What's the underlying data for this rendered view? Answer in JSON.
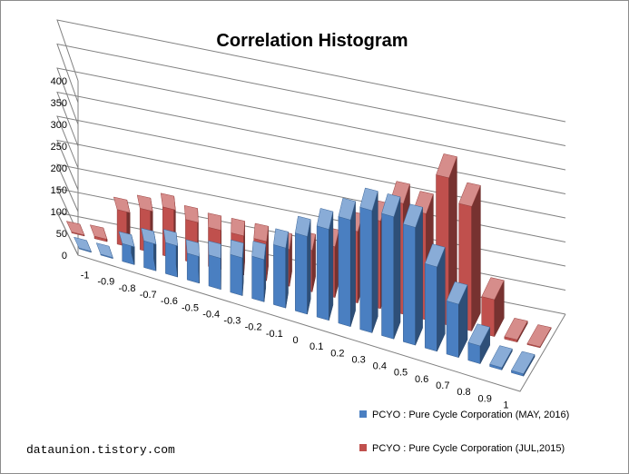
{
  "chart_data": {
    "type": "bar",
    "title": "Correlation Histogram",
    "categories": [
      "-1",
      "-0.9",
      "-0.8",
      "-0.7",
      "-0.6",
      "-0.5",
      "-0.4",
      "-0.3",
      "-0.2",
      "-0.1",
      "0",
      "0.1",
      "0.2",
      "0.3",
      "0.4",
      "0.5",
      "0.6",
      "0.7",
      "0.8",
      "0.9",
      "1"
    ],
    "series": [
      {
        "name": "PCYO : Pure Cycle Corporation (MAY, 2016)",
        "color": "#4a7fc1",
        "values": [
          0,
          0,
          40,
          60,
          70,
          60,
          70,
          85,
          95,
          135,
          175,
          205,
          240,
          275,
          275,
          265,
          190,
          120,
          40,
          5,
          5
        ]
      },
      {
        "name": "PCYO : Pure Cycle Corporation (JUL,2015)",
        "color": "#c0504d",
        "values": [
          0,
          5,
          75,
          90,
          105,
          90,
          85,
          85,
          85,
          80,
          90,
          110,
          155,
          190,
          240,
          230,
          320,
          270,
          80,
          5,
          0
        ]
      }
    ],
    "ylim": [
      0,
      400
    ],
    "yticks": [
      "0",
      "50",
      "100",
      "150",
      "200",
      "250",
      "300",
      "350",
      "400"
    ],
    "grid": true,
    "legend_position": "bottom-right",
    "style": "3d-clustered"
  },
  "watermark": "dataunion.tistory.com"
}
